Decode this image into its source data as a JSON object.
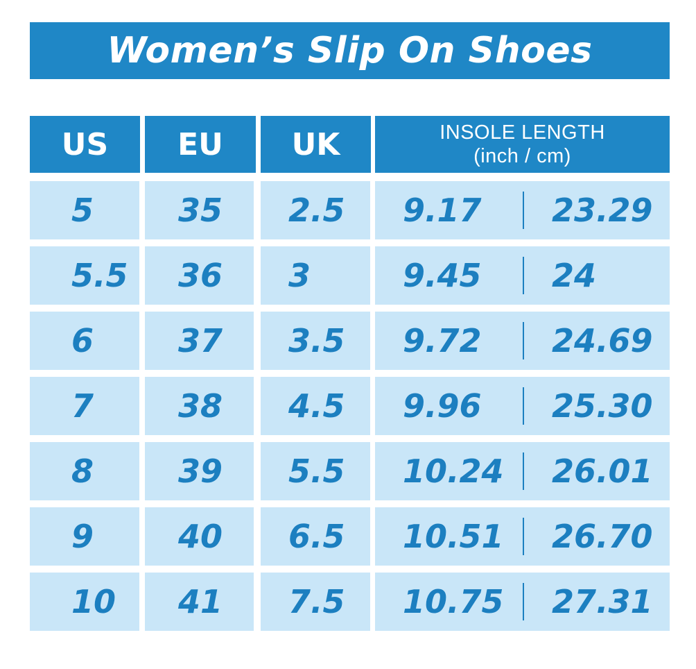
{
  "title": "Women’s Slip On Shoes",
  "headers": {
    "us": "US",
    "eu": "EU",
    "uk": "UK",
    "insole_line1": "INSOLE LENGTH",
    "insole_line2": "(inch / cm)"
  },
  "rows": [
    {
      "us": "5",
      "eu": "35",
      "uk": "2.5",
      "inch": "9.17",
      "cm": "23.29"
    },
    {
      "us": "5.5",
      "eu": "36",
      "uk": "3",
      "inch": "9.45",
      "cm": "24"
    },
    {
      "us": "6",
      "eu": "37",
      "uk": "3.5",
      "inch": "9.72",
      "cm": "24.69"
    },
    {
      "us": "7",
      "eu": "38",
      "uk": "4.5",
      "inch": "9.96",
      "cm": "25.30"
    },
    {
      "us": "8",
      "eu": "39",
      "uk": "5.5",
      "inch": "10.24",
      "cm": "26.01"
    },
    {
      "us": "9",
      "eu": "40",
      "uk": "6.5",
      "inch": "10.51",
      "cm": "26.70"
    },
    {
      "us": "10",
      "eu": "41",
      "uk": "7.5",
      "inch": "10.75",
      "cm": "27.31"
    }
  ],
  "colors": {
    "header_bg": "#1f87c6",
    "header_text": "#ffffff",
    "cell_bg": "#c9e6f8",
    "cell_text": "#1c7fc0"
  }
}
